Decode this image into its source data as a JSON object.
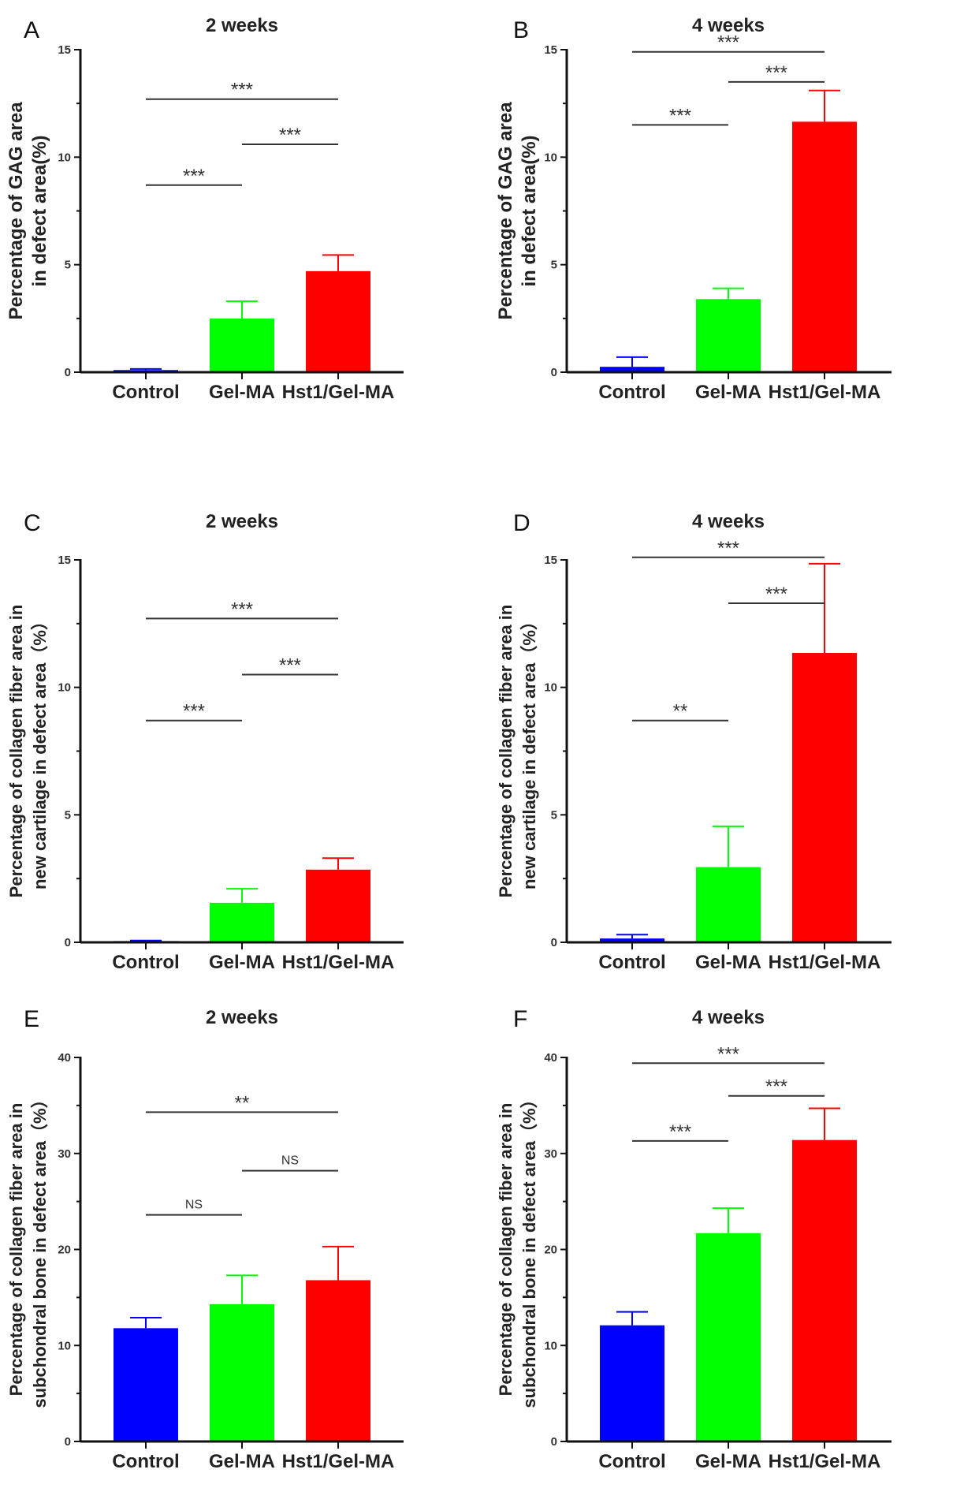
{
  "chart_data": [
    {
      "type": "bar",
      "panel": "A",
      "title": "2 weeks",
      "ylabel": [
        "Percentage of GAG area",
        "in defect area(%)"
      ],
      "ylim": [
        0,
        15
      ],
      "yticks": [
        0,
        5,
        10,
        15
      ],
      "categories": [
        "Control",
        "Gel-MA",
        "Hst1/Gel-MA"
      ],
      "values": [
        0.1,
        2.5,
        4.7
      ],
      "error_upper": [
        0.15,
        3.3,
        5.45
      ],
      "significance": [
        {
          "from": 0,
          "to": 2,
          "y": 12.7,
          "label": "***"
        },
        {
          "from": 1,
          "to": 2,
          "y": 10.6,
          "label": "***"
        },
        {
          "from": 0,
          "to": 1,
          "y": 8.7,
          "label": "***"
        }
      ]
    },
    {
      "type": "bar",
      "panel": "B",
      "title": "4 weeks",
      "ylabel": [
        "Percentage of GAG area",
        "in defect area(%)"
      ],
      "ylim": [
        0,
        15
      ],
      "yticks": [
        0,
        5,
        10,
        15
      ],
      "categories": [
        "Control",
        "Gel-MA",
        "Hst1/Gel-MA"
      ],
      "values": [
        0.25,
        3.4,
        11.65
      ],
      "error_upper": [
        0.7,
        3.9,
        13.1
      ],
      "significance": [
        {
          "from": 0,
          "to": 2,
          "y": 14.9,
          "label": "***"
        },
        {
          "from": 1,
          "to": 2,
          "y": 13.5,
          "label": "***"
        },
        {
          "from": 0,
          "to": 1,
          "y": 11.5,
          "label": "***"
        }
      ]
    },
    {
      "type": "bar",
      "panel": "C",
      "title": "2 weeks",
      "ylabel": [
        "Percentage of collagen fiber area in",
        "new cartilage in defect area（%）"
      ],
      "ylim": [
        0,
        15
      ],
      "yticks": [
        0,
        5,
        10,
        15
      ],
      "categories": [
        "Control",
        "Gel-MA",
        "Hst1/Gel-MA"
      ],
      "values": [
        0.05,
        1.55,
        2.85
      ],
      "error_upper": [
        0.07,
        2.1,
        3.3
      ],
      "significance": [
        {
          "from": 0,
          "to": 2,
          "y": 12.7,
          "label": "***"
        },
        {
          "from": 1,
          "to": 2,
          "y": 10.5,
          "label": "***"
        },
        {
          "from": 0,
          "to": 1,
          "y": 8.7,
          "label": "***"
        }
      ]
    },
    {
      "type": "bar",
      "panel": "D",
      "title": "4 weeks",
      "ylabel": [
        "Percentage of collagen fiber area in",
        "new cartilage in defect area（%）"
      ],
      "ylim": [
        0,
        15
      ],
      "yticks": [
        0,
        5,
        10,
        15
      ],
      "categories": [
        "Control",
        "Gel-MA",
        "Hst1/Gel-MA"
      ],
      "values": [
        0.15,
        2.95,
        11.35
      ],
      "error_upper": [
        0.3,
        4.55,
        14.85
      ],
      "significance": [
        {
          "from": 0,
          "to": 2,
          "y": 15.1,
          "label": "***"
        },
        {
          "from": 1,
          "to": 2,
          "y": 13.3,
          "label": "***"
        },
        {
          "from": 0,
          "to": 1,
          "y": 8.7,
          "label": "**"
        }
      ]
    },
    {
      "type": "bar",
      "panel": "E",
      "title": "2 weeks",
      "ylabel": [
        "Percentage of collagen fiber area in",
        "subchondral bone in defect area（%）"
      ],
      "ylim": [
        0,
        40
      ],
      "yticks": [
        0,
        10,
        20,
        30,
        40
      ],
      "categories": [
        "Control",
        "Gel-MA",
        "Hst1/Gel-MA"
      ],
      "values": [
        11.8,
        14.3,
        16.8
      ],
      "error_upper": [
        12.9,
        17.3,
        20.3
      ],
      "significance": [
        {
          "from": 0,
          "to": 2,
          "y": 34.3,
          "label": "**"
        },
        {
          "from": 1,
          "to": 2,
          "y": 28.2,
          "label": "NS"
        },
        {
          "from": 0,
          "to": 1,
          "y": 23.6,
          "label": "NS"
        }
      ]
    },
    {
      "type": "bar",
      "panel": "F",
      "title": "4 weeks",
      "ylabel": [
        "Percentage of collagen fiber area in",
        "subchondral bone in defect area（%）"
      ],
      "ylim": [
        0,
        40
      ],
      "yticks": [
        0,
        10,
        20,
        30,
        40
      ],
      "categories": [
        "Control",
        "Gel-MA",
        "Hst1/Gel-MA"
      ],
      "values": [
        12.1,
        21.7,
        31.4
      ],
      "error_upper": [
        13.5,
        24.3,
        34.7
      ],
      "significance": [
        {
          "from": 0,
          "to": 2,
          "y": 39.4,
          "label": "***"
        },
        {
          "from": 1,
          "to": 2,
          "y": 36.0,
          "label": "***"
        },
        {
          "from": 0,
          "to": 1,
          "y": 31.3,
          "label": "***"
        }
      ]
    }
  ],
  "colors": [
    "#0000ff",
    "#00ff00",
    "#ff0000"
  ]
}
